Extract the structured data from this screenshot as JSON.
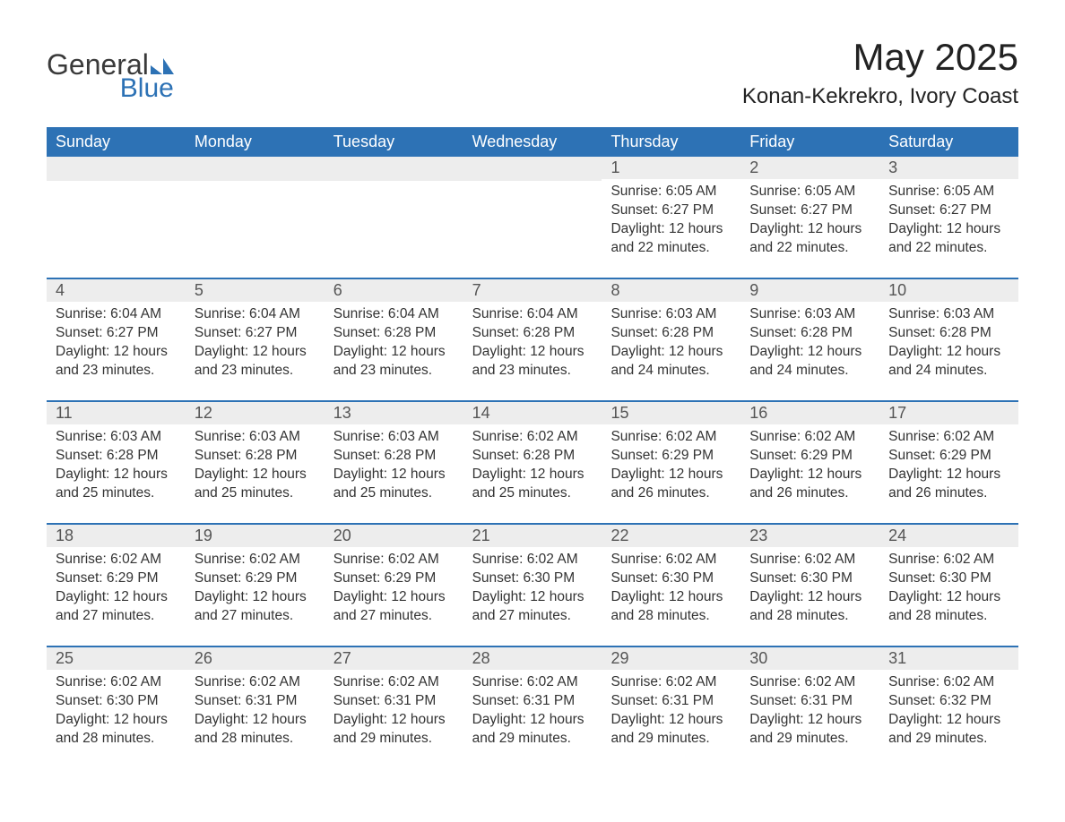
{
  "brand": {
    "part1": "General",
    "part2": "Blue",
    "icon_color": "#2d72b5"
  },
  "title": "May 2025",
  "location": "Konan-Kekrekro, Ivory Coast",
  "colors": {
    "header_bg": "#2d72b5",
    "header_text": "#ffffff",
    "day_number_bg": "#ededed",
    "day_number_text": "#555555",
    "body_text": "#333333",
    "row_border": "#2d72b5",
    "page_bg": "#ffffff"
  },
  "typography": {
    "title_fontsize": 42,
    "location_fontsize": 24,
    "weekday_fontsize": 18,
    "daynum_fontsize": 18,
    "body_fontsize": 15.5
  },
  "weekdays": [
    "Sunday",
    "Monday",
    "Tuesday",
    "Wednesday",
    "Thursday",
    "Friday",
    "Saturday"
  ],
  "weeks": [
    [
      null,
      null,
      null,
      null,
      {
        "day": "1",
        "sunrise": "6:05 AM",
        "sunset": "6:27 PM",
        "daylight": "12 hours and 22 minutes."
      },
      {
        "day": "2",
        "sunrise": "6:05 AM",
        "sunset": "6:27 PM",
        "daylight": "12 hours and 22 minutes."
      },
      {
        "day": "3",
        "sunrise": "6:05 AM",
        "sunset": "6:27 PM",
        "daylight": "12 hours and 22 minutes."
      }
    ],
    [
      {
        "day": "4",
        "sunrise": "6:04 AM",
        "sunset": "6:27 PM",
        "daylight": "12 hours and 23 minutes."
      },
      {
        "day": "5",
        "sunrise": "6:04 AM",
        "sunset": "6:27 PM",
        "daylight": "12 hours and 23 minutes."
      },
      {
        "day": "6",
        "sunrise": "6:04 AM",
        "sunset": "6:28 PM",
        "daylight": "12 hours and 23 minutes."
      },
      {
        "day": "7",
        "sunrise": "6:04 AM",
        "sunset": "6:28 PM",
        "daylight": "12 hours and 23 minutes."
      },
      {
        "day": "8",
        "sunrise": "6:03 AM",
        "sunset": "6:28 PM",
        "daylight": "12 hours and 24 minutes."
      },
      {
        "day": "9",
        "sunrise": "6:03 AM",
        "sunset": "6:28 PM",
        "daylight": "12 hours and 24 minutes."
      },
      {
        "day": "10",
        "sunrise": "6:03 AM",
        "sunset": "6:28 PM",
        "daylight": "12 hours and 24 minutes."
      }
    ],
    [
      {
        "day": "11",
        "sunrise": "6:03 AM",
        "sunset": "6:28 PM",
        "daylight": "12 hours and 25 minutes."
      },
      {
        "day": "12",
        "sunrise": "6:03 AM",
        "sunset": "6:28 PM",
        "daylight": "12 hours and 25 minutes."
      },
      {
        "day": "13",
        "sunrise": "6:03 AM",
        "sunset": "6:28 PM",
        "daylight": "12 hours and 25 minutes."
      },
      {
        "day": "14",
        "sunrise": "6:02 AM",
        "sunset": "6:28 PM",
        "daylight": "12 hours and 25 minutes."
      },
      {
        "day": "15",
        "sunrise": "6:02 AM",
        "sunset": "6:29 PM",
        "daylight": "12 hours and 26 minutes."
      },
      {
        "day": "16",
        "sunrise": "6:02 AM",
        "sunset": "6:29 PM",
        "daylight": "12 hours and 26 minutes."
      },
      {
        "day": "17",
        "sunrise": "6:02 AM",
        "sunset": "6:29 PM",
        "daylight": "12 hours and 26 minutes."
      }
    ],
    [
      {
        "day": "18",
        "sunrise": "6:02 AM",
        "sunset": "6:29 PM",
        "daylight": "12 hours and 27 minutes."
      },
      {
        "day": "19",
        "sunrise": "6:02 AM",
        "sunset": "6:29 PM",
        "daylight": "12 hours and 27 minutes."
      },
      {
        "day": "20",
        "sunrise": "6:02 AM",
        "sunset": "6:29 PM",
        "daylight": "12 hours and 27 minutes."
      },
      {
        "day": "21",
        "sunrise": "6:02 AM",
        "sunset": "6:30 PM",
        "daylight": "12 hours and 27 minutes."
      },
      {
        "day": "22",
        "sunrise": "6:02 AM",
        "sunset": "6:30 PM",
        "daylight": "12 hours and 28 minutes."
      },
      {
        "day": "23",
        "sunrise": "6:02 AM",
        "sunset": "6:30 PM",
        "daylight": "12 hours and 28 minutes."
      },
      {
        "day": "24",
        "sunrise": "6:02 AM",
        "sunset": "6:30 PM",
        "daylight": "12 hours and 28 minutes."
      }
    ],
    [
      {
        "day": "25",
        "sunrise": "6:02 AM",
        "sunset": "6:30 PM",
        "daylight": "12 hours and 28 minutes."
      },
      {
        "day": "26",
        "sunrise": "6:02 AM",
        "sunset": "6:31 PM",
        "daylight": "12 hours and 28 minutes."
      },
      {
        "day": "27",
        "sunrise": "6:02 AM",
        "sunset": "6:31 PM",
        "daylight": "12 hours and 29 minutes."
      },
      {
        "day": "28",
        "sunrise": "6:02 AM",
        "sunset": "6:31 PM",
        "daylight": "12 hours and 29 minutes."
      },
      {
        "day": "29",
        "sunrise": "6:02 AM",
        "sunset": "6:31 PM",
        "daylight": "12 hours and 29 minutes."
      },
      {
        "day": "30",
        "sunrise": "6:02 AM",
        "sunset": "6:31 PM",
        "daylight": "12 hours and 29 minutes."
      },
      {
        "day": "31",
        "sunrise": "6:02 AM",
        "sunset": "6:32 PM",
        "daylight": "12 hours and 29 minutes."
      }
    ]
  ],
  "labels": {
    "sunrise": "Sunrise:",
    "sunset": "Sunset:",
    "daylight": "Daylight:"
  }
}
